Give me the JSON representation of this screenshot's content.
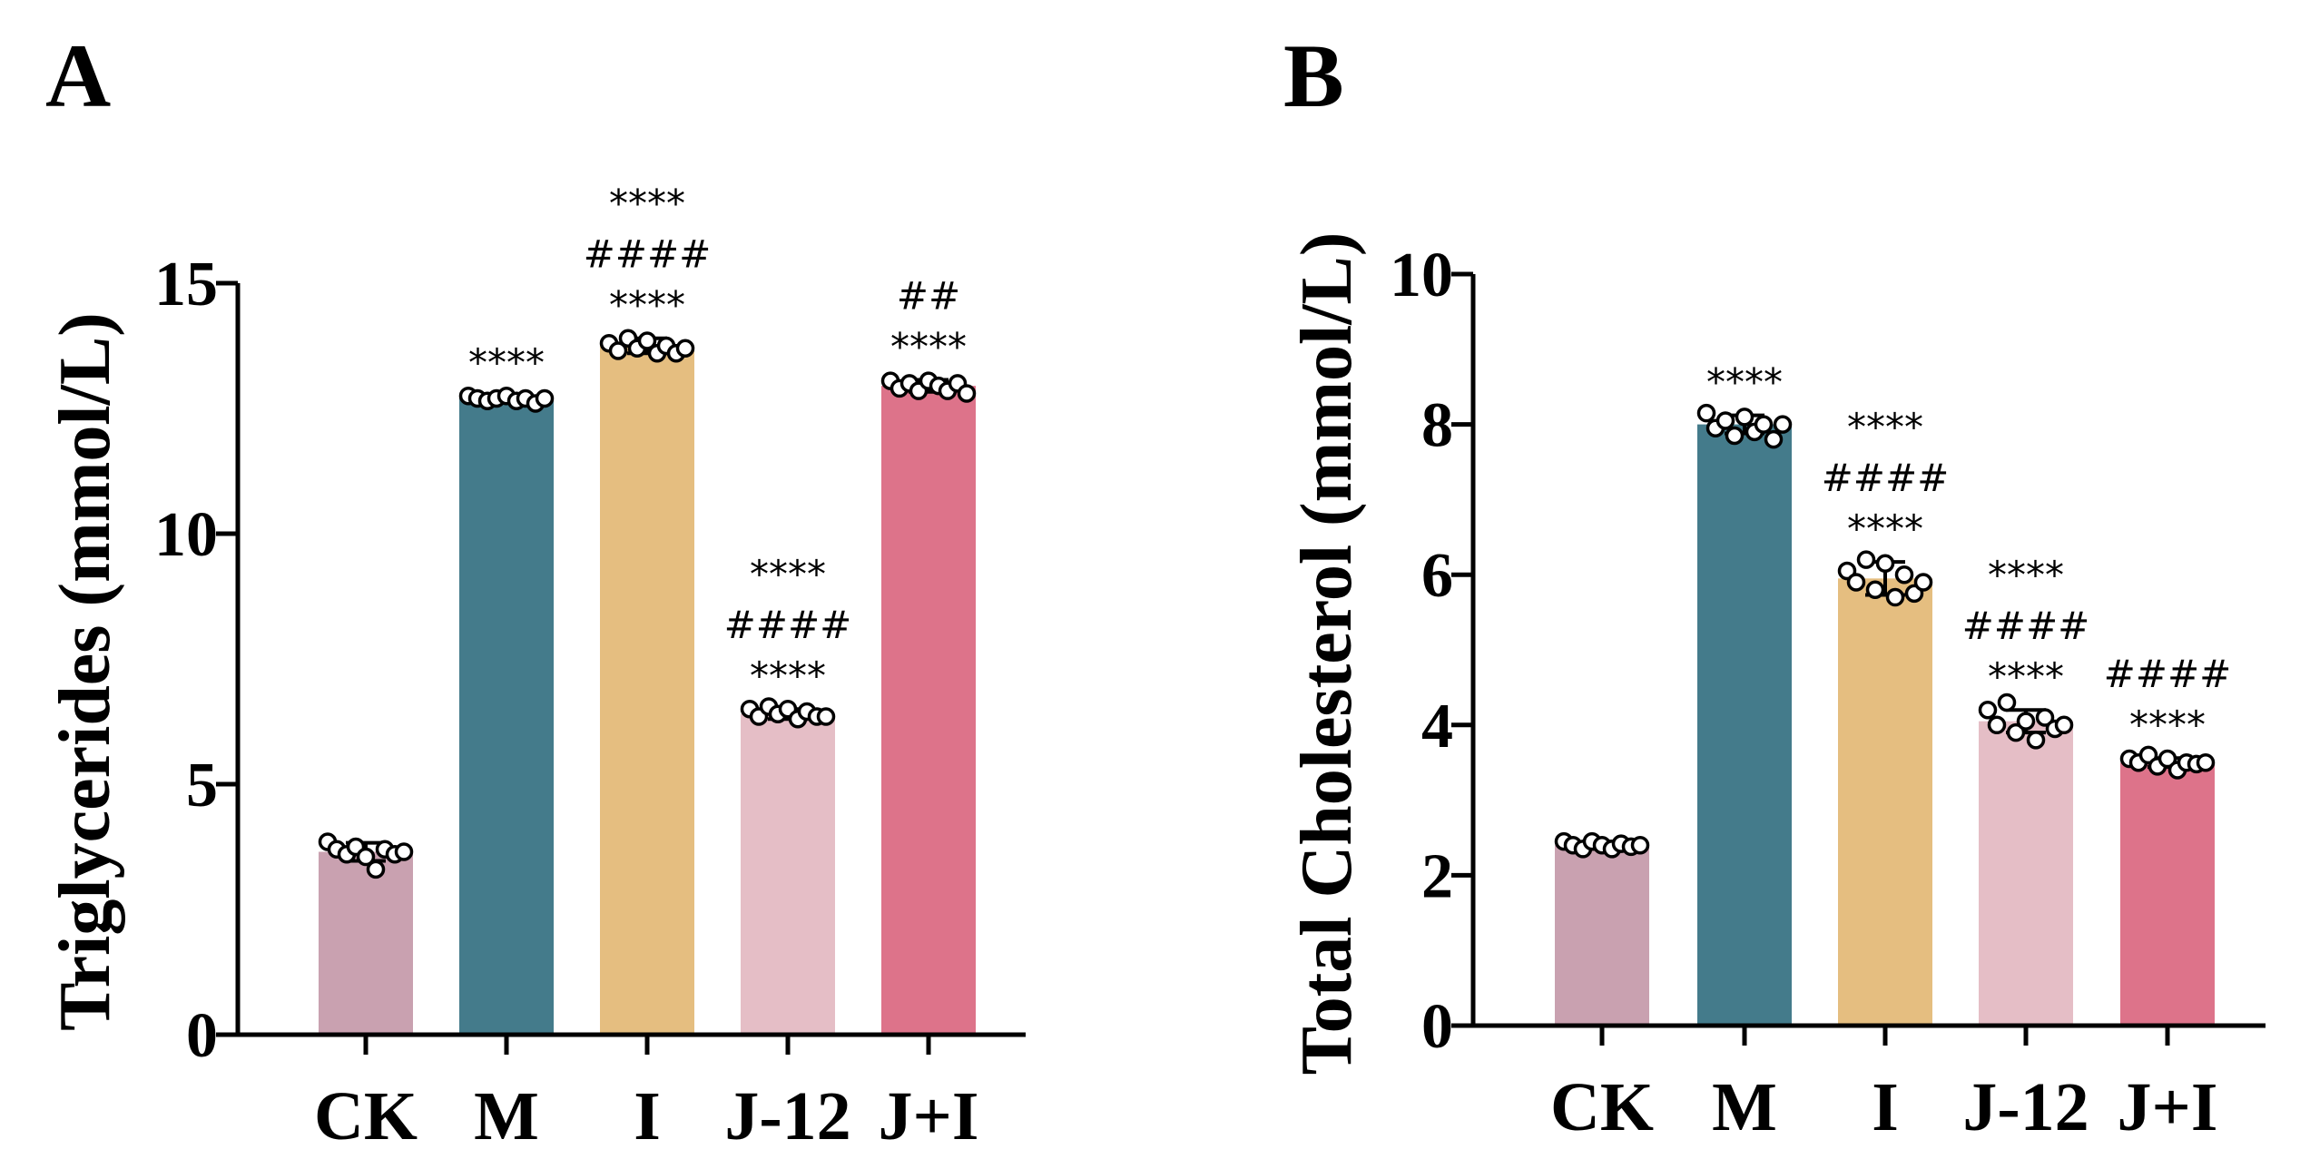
{
  "figure": {
    "colors": {
      "CK": "#c9a1b0",
      "M": "#447b8b",
      "I": "#e5be80",
      "J-12": "#e5bec6",
      "J+I": "#dd738a"
    }
  },
  "chart_data": [
    {
      "panel_label": "A",
      "type": "bar",
      "ylabel": "Triglycerides (mmol/L)",
      "xlabel": "",
      "ylim": [
        0,
        15
      ],
      "yticks": [
        0,
        5,
        10,
        15
      ],
      "ytick_labels": [
        "0",
        "5",
        "10",
        "15"
      ],
      "categories": [
        "CK",
        "M",
        "I",
        "J-12",
        "J+I"
      ],
      "values": [
        3.65,
        12.7,
        13.75,
        6.4,
        12.95
      ],
      "errors": [
        0.18,
        0.05,
        0.15,
        0.1,
        0.12
      ],
      "points": [
        [
          3.85,
          3.7,
          3.6,
          3.75,
          3.55,
          3.3,
          3.7,
          3.6,
          3.65
        ],
        [
          12.75,
          12.7,
          12.65,
          12.7,
          12.75,
          12.65,
          12.7,
          12.6,
          12.7
        ],
        [
          13.8,
          13.65,
          13.9,
          13.7,
          13.85,
          13.6,
          13.75,
          13.6,
          13.7
        ],
        [
          6.5,
          6.35,
          6.55,
          6.4,
          6.5,
          6.3,
          6.45,
          6.35,
          6.35
        ],
        [
          13.05,
          12.9,
          13.0,
          12.85,
          13.05,
          12.95,
          12.85,
          13.0,
          12.8
        ]
      ],
      "annotations": [
        [],
        [
          "****"
        ],
        [
          "****",
          "####",
          "****"
        ],
        [
          "****",
          "####",
          "****"
        ],
        [
          "****",
          "##"
        ]
      ]
    },
    {
      "panel_label": "B",
      "type": "bar",
      "ylabel": "Total Cholesterol (mmol/L)",
      "xlabel": "",
      "ylim": [
        0,
        10
      ],
      "yticks": [
        0,
        2,
        4,
        6,
        8,
        10
      ],
      "ytick_labels": [
        "0",
        "2",
        "4",
        "6",
        "8",
        "10"
      ],
      "categories": [
        "CK",
        "M",
        "I",
        "J-12",
        "J+I"
      ],
      "values": [
        2.4,
        8.0,
        5.95,
        4.05,
        3.5
      ],
      "errors": [
        0.05,
        0.12,
        0.22,
        0.15,
        0.06
      ],
      "points": [
        [
          2.45,
          2.4,
          2.35,
          2.45,
          2.4,
          2.35,
          2.42,
          2.38,
          2.4
        ],
        [
          8.15,
          7.95,
          8.05,
          7.85,
          8.1,
          7.9,
          8.0,
          7.8,
          8.0
        ],
        [
          6.05,
          5.9,
          6.2,
          5.8,
          6.15,
          5.7,
          6.0,
          5.75,
          5.9
        ],
        [
          4.2,
          4.0,
          4.3,
          3.9,
          4.05,
          3.8,
          4.1,
          3.95,
          4.0
        ],
        [
          3.55,
          3.5,
          3.6,
          3.45,
          3.55,
          3.4,
          3.5,
          3.48,
          3.5
        ]
      ],
      "annotations": [
        [],
        [
          "****"
        ],
        [
          "****",
          "####",
          "****"
        ],
        [
          "****",
          "####",
          "****"
        ],
        [
          "****",
          "####"
        ]
      ]
    }
  ]
}
